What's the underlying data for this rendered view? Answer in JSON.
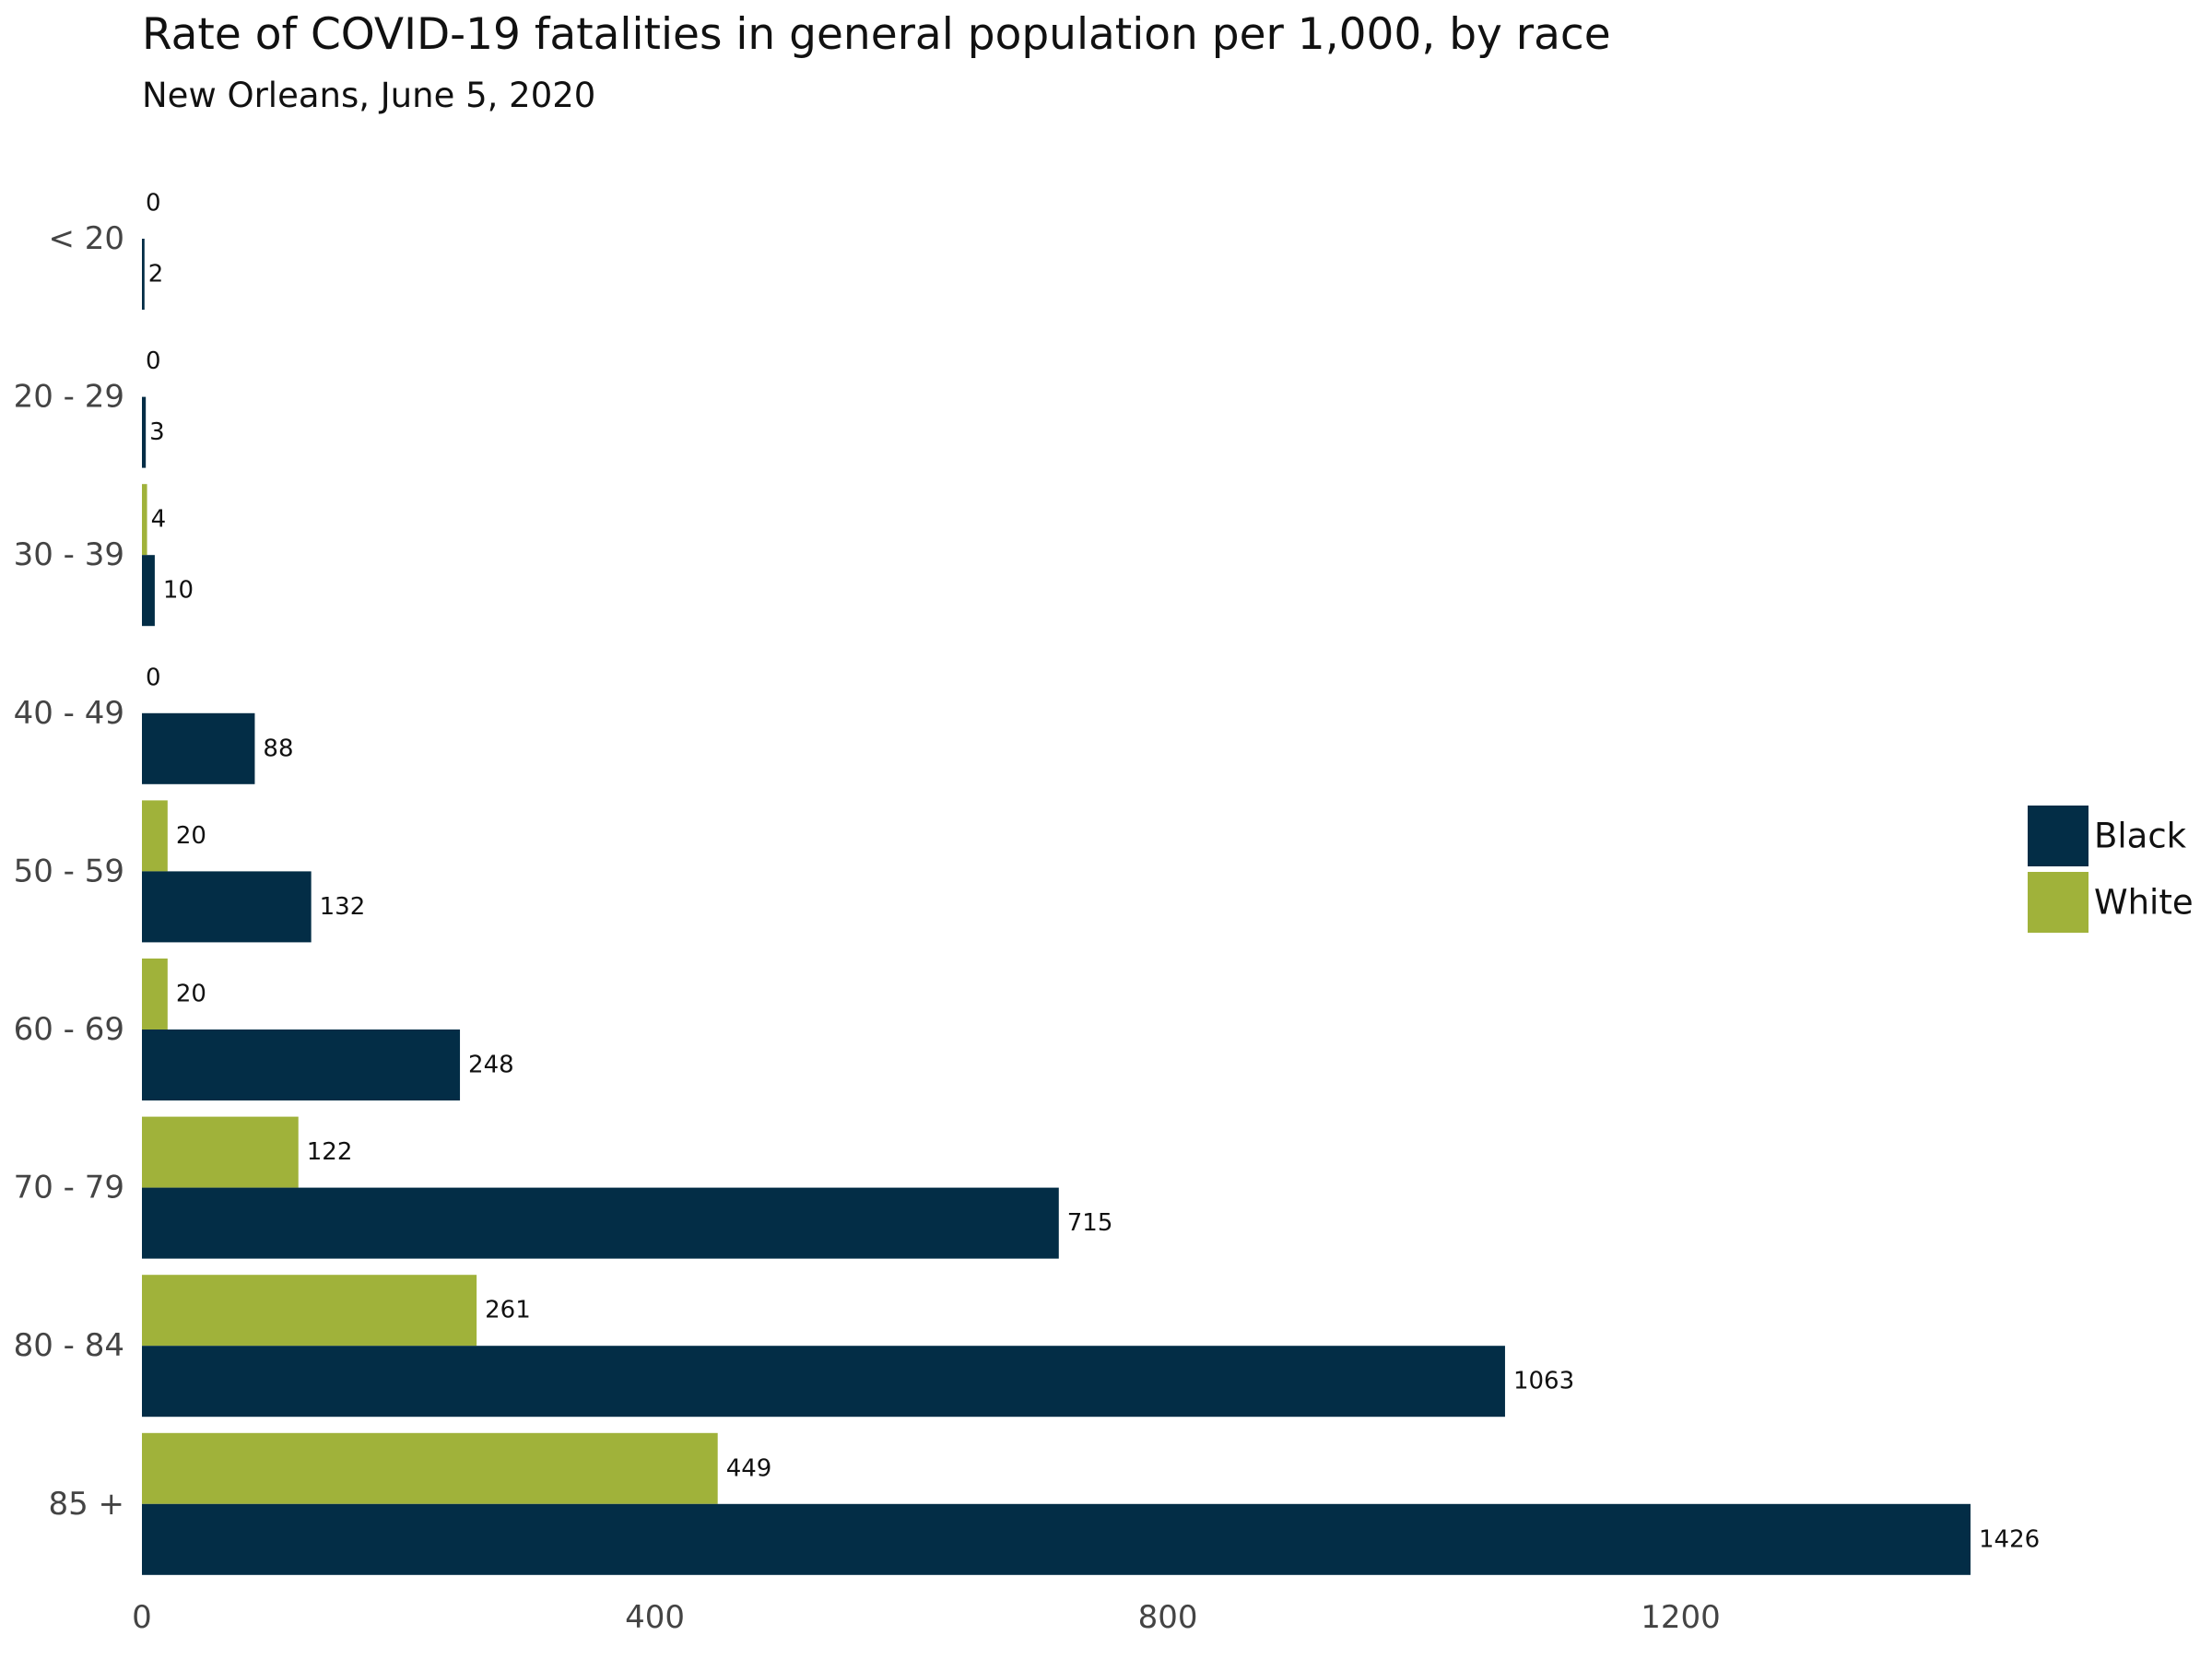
{
  "colors": {
    "Black": "#032d46",
    "White": "#a0b23a"
  },
  "chart_data": {
    "type": "bar",
    "orientation": "horizontal",
    "title": "Rate of COVID-19 fatalities in general population per 1,000, by race",
    "subtitle": "New Orleans, June 5, 2020",
    "categories": [
      "< 20",
      "20 - 29",
      "30 - 39",
      "40 - 49",
      "50 - 59",
      "60 - 69",
      "70 - 79",
      "80 - 84",
      "85 +"
    ],
    "series": [
      {
        "name": "White",
        "values": [
          0,
          0,
          4,
          0,
          20,
          20,
          122,
          261,
          449
        ]
      },
      {
        "name": "Black",
        "values": [
          2,
          3,
          10,
          88,
          132,
          248,
          715,
          1063,
          1426
        ]
      }
    ],
    "xticks": [
      0,
      400,
      800,
      1200
    ],
    "xlim": [
      0,
      1520
    ],
    "grid": false,
    "legend": {
      "position": "right",
      "entries": [
        "Black",
        "White"
      ]
    }
  }
}
